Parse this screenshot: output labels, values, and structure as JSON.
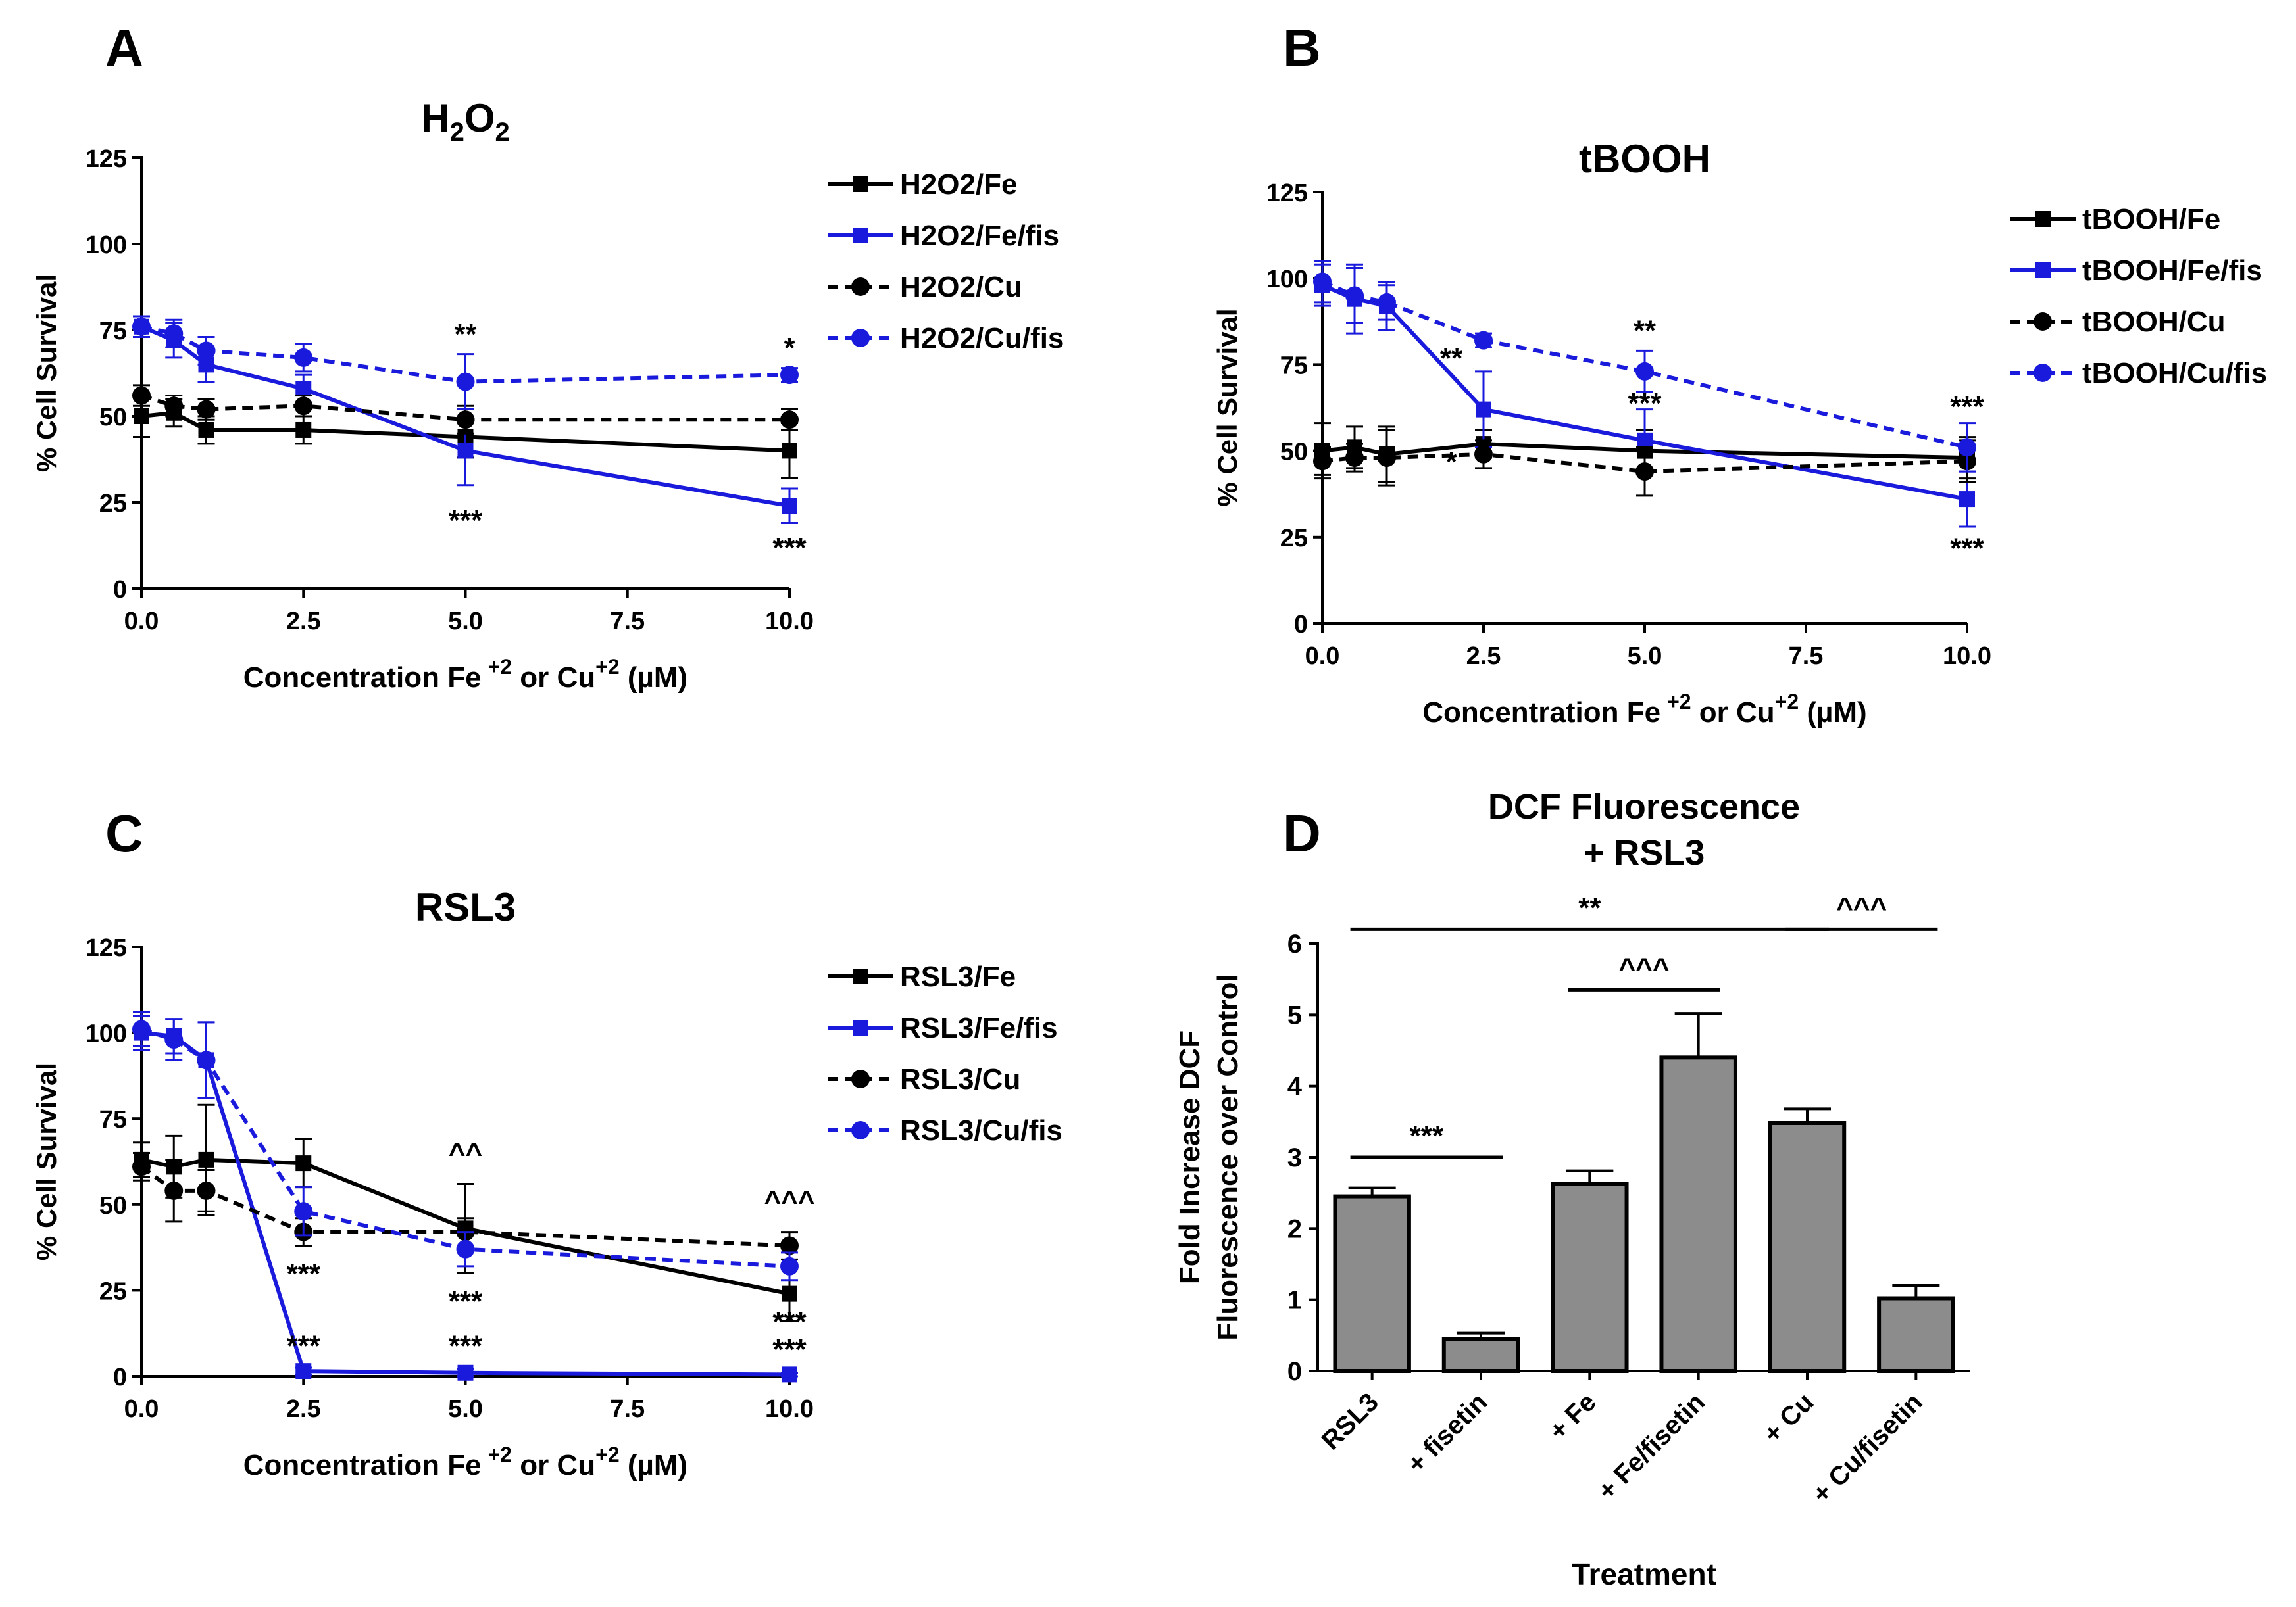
{
  "colors": {
    "black": "#000000",
    "blue": "#1a1adc",
    "bar_fill": "#8c8c8c"
  },
  "chart_data": [
    {
      "type": "line",
      "panel": "A",
      "title": "H2O2",
      "title_base": "H",
      "title_sub1": "2",
      "title_mid": "O",
      "title_sub2": "2",
      "ylabel": "% Cell Survival",
      "xlabel_main": "Concentration Fe",
      "xlabel_sup1": "+2",
      "xlabel_mid": " or Cu",
      "xlabel_sup2": "+2",
      "xlabel_end": " (µM)",
      "xlim": [
        0,
        10
      ],
      "ylim": [
        0,
        125
      ],
      "xticks": [
        0,
        2.5,
        5,
        7.5,
        10
      ],
      "xtick_labels": [
        "0.0",
        "2.5",
        "5.0",
        "7.5",
        "10.0"
      ],
      "yticks": [
        0,
        25,
        50,
        75,
        100,
        125
      ],
      "ytick_labels": [
        "0",
        "25",
        "50",
        "75",
        "100",
        "125"
      ],
      "legend_position": "right",
      "series": [
        {
          "name": "H2O2/Fe",
          "color": "#000000",
          "dash": false,
          "marker": "square",
          "x": [
            0,
            0.5,
            1,
            2.5,
            5,
            10
          ],
          "y": [
            50,
            51,
            46,
            46,
            44,
            40
          ],
          "err": [
            6,
            4,
            4,
            4,
            6,
            8
          ]
        },
        {
          "name": "H2O2/Fe/fis",
          "color": "#1a1adc",
          "dash": false,
          "marker": "square",
          "x": [
            0,
            0.5,
            1,
            2.5,
            5,
            10
          ],
          "y": [
            76,
            72,
            65,
            58,
            40,
            24
          ],
          "err": [
            3,
            5,
            5,
            4,
            10,
            5
          ]
        },
        {
          "name": "H2O2/Cu",
          "color": "#000000",
          "dash": true,
          "marker": "circle",
          "x": [
            0,
            0.5,
            1,
            2.5,
            5,
            10
          ],
          "y": [
            56,
            53,
            52,
            53,
            49,
            49
          ],
          "err": [
            3,
            3,
            3,
            3,
            4,
            3
          ]
        },
        {
          "name": "H2O2/Cu/fis",
          "color": "#1a1adc",
          "dash": true,
          "marker": "circle",
          "x": [
            0,
            0.5,
            1,
            2.5,
            5,
            10
          ],
          "y": [
            76,
            74,
            69,
            67,
            60,
            62
          ],
          "err": [
            3,
            4,
            4,
            4,
            8,
            2
          ]
        }
      ],
      "annotations": [
        {
          "text": "**",
          "x": 5,
          "y": 71
        },
        {
          "text": "***",
          "x": 5,
          "y": 17
        },
        {
          "text": "*",
          "x": 10,
          "y": 67
        },
        {
          "text": "***",
          "x": 10,
          "y": 9
        }
      ]
    },
    {
      "type": "line",
      "panel": "B",
      "title": "tBOOH",
      "ylabel": "% Cell Survival",
      "xlabel_main": "Concentration Fe",
      "xlabel_sup1": "+2",
      "xlabel_mid": " or Cu",
      "xlabel_sup2": "+2",
      "xlabel_end": " (µM)",
      "xlim": [
        0,
        10
      ],
      "ylim": [
        0,
        125
      ],
      "xticks": [
        0,
        2.5,
        5,
        7.5,
        10
      ],
      "xtick_labels": [
        "0.0",
        "2.5",
        "5.0",
        "7.5",
        "10.0"
      ],
      "yticks": [
        0,
        25,
        50,
        75,
        100,
        125
      ],
      "ytick_labels": [
        "0",
        "25",
        "50",
        "75",
        "100",
        "125"
      ],
      "legend_position": "right",
      "series": [
        {
          "name": "tBOOH/Fe",
          "color": "#000000",
          "dash": false,
          "marker": "square",
          "x": [
            0,
            0.5,
            1,
            2.5,
            5,
            10
          ],
          "y": [
            50,
            51,
            49,
            52,
            50,
            48
          ],
          "err": [
            8,
            6,
            8,
            4,
            6,
            6
          ]
        },
        {
          "name": "tBOOH/Fe/fis",
          "color": "#1a1adc",
          "dash": false,
          "marker": "square",
          "x": [
            0,
            0.5,
            1,
            2.5,
            5,
            10
          ],
          "y": [
            98,
            94,
            92,
            62,
            53,
            36
          ],
          "err": [
            6,
            10,
            7,
            11,
            9,
            8
          ]
        },
        {
          "name": "tBOOH/Cu",
          "color": "#000000",
          "dash": true,
          "marker": "circle",
          "x": [
            0,
            0.5,
            1,
            2.5,
            5,
            10
          ],
          "y": [
            47,
            48,
            48,
            49,
            44,
            47
          ],
          "err": [
            4,
            4,
            8,
            4,
            7,
            6
          ]
        },
        {
          "name": "tBOOH/Cu/fis",
          "color": "#1a1adc",
          "dash": true,
          "marker": "circle",
          "x": [
            0,
            0.5,
            1,
            2.5,
            5,
            10
          ],
          "y": [
            99,
            95,
            93,
            82,
            73,
            51
          ],
          "err": [
            6,
            8,
            5,
            2,
            6,
            7
          ]
        }
      ],
      "annotations": [
        {
          "text": "**",
          "x": 2,
          "y": 74
        },
        {
          "text": "*",
          "x": 2,
          "y": 44
        },
        {
          "text": "**",
          "x": 5,
          "y": 82
        },
        {
          "text": "***",
          "x": 5,
          "y": 61
        },
        {
          "text": "***",
          "x": 10,
          "y": 60
        },
        {
          "text": "***",
          "x": 10,
          "y": 19
        }
      ]
    },
    {
      "type": "line",
      "panel": "C",
      "title": "RSL3",
      "ylabel": "% Cell Survival",
      "xlabel_main": "Concentration Fe",
      "xlabel_sup1": "+2",
      "xlabel_mid": " or Cu",
      "xlabel_sup2": "+2",
      "xlabel_end": " (µM)",
      "xlim": [
        0,
        10
      ],
      "ylim": [
        0,
        125
      ],
      "xticks": [
        0,
        2.5,
        5,
        7.5,
        10
      ],
      "xtick_labels": [
        "0.0",
        "2.5",
        "5.0",
        "7.5",
        "10.0"
      ],
      "yticks": [
        0,
        25,
        50,
        75,
        100,
        125
      ],
      "ytick_labels": [
        "0",
        "25",
        "50",
        "75",
        "100",
        "125"
      ],
      "legend_position": "right",
      "series": [
        {
          "name": "RSL3/Fe",
          "color": "#000000",
          "dash": false,
          "marker": "square",
          "x": [
            0,
            0.5,
            1,
            2.5,
            5,
            10
          ],
          "y": [
            63,
            61,
            63,
            62,
            43,
            24
          ],
          "err": [
            5,
            9,
            16,
            7,
            13,
            8
          ]
        },
        {
          "name": "RSL3/Fe/fis",
          "color": "#1a1adc",
          "dash": false,
          "marker": "square",
          "x": [
            0,
            0.5,
            1,
            2.5,
            5,
            10
          ],
          "y": [
            100,
            99,
            92,
            1.5,
            1,
            0.5
          ],
          "err": [
            5,
            5,
            11,
            1,
            1,
            0.5
          ]
        },
        {
          "name": "RSL3/Cu",
          "color": "#000000",
          "dash": true,
          "marker": "circle",
          "x": [
            0,
            0.5,
            1,
            2.5,
            5,
            10
          ],
          "y": [
            61,
            54,
            54,
            42,
            42,
            38
          ],
          "err": [
            4,
            9,
            6,
            4,
            4,
            4
          ]
        },
        {
          "name": "RSL3/Cu/fis",
          "color": "#1a1adc",
          "dash": true,
          "marker": "circle",
          "x": [
            0,
            0.5,
            1,
            2.5,
            5,
            10
          ],
          "y": [
            101,
            98,
            92,
            48,
            37,
            32
          ],
          "err": [
            5,
            6,
            11,
            7,
            5,
            4
          ]
        }
      ],
      "annotations": [
        {
          "text": "***",
          "x": 2.5,
          "y": 27
        },
        {
          "text": "***",
          "x": 2.5,
          "y": 6
        },
        {
          "text": "^^",
          "x": 5,
          "y": 62
        },
        {
          "text": "***",
          "x": 5,
          "y": 19
        },
        {
          "text": "***",
          "x": 5,
          "y": 6
        },
        {
          "text": "^^^",
          "x": 10,
          "y": 48
        },
        {
          "text": "***",
          "x": 10,
          "y": 13
        },
        {
          "text": "***",
          "x": 10,
          "y": 5
        }
      ]
    },
    {
      "type": "bar",
      "panel": "D",
      "title_line1": "DCF Fluorescence",
      "title_line2": "+ RSL3",
      "ylabel_line1": "Fold Increase DCF",
      "ylabel_line2": "Fluorescence over Control",
      "xlabel": "Treatment",
      "categories": [
        "RSL3",
        "+ fisetin",
        "+ Fe",
        "+ Fe/fisetin",
        "+ Cu",
        "+ Cu/fisetin"
      ],
      "values": [
        2.45,
        0.45,
        2.63,
        4.4,
        3.48,
        1.02
      ],
      "errors": [
        0.12,
        0.08,
        0.18,
        0.62,
        0.2,
        0.18
      ],
      "ylim": [
        0,
        6
      ],
      "yticks": [
        0,
        1,
        2,
        3,
        4,
        5,
        6
      ],
      "ytick_labels": [
        "0",
        "1",
        "2",
        "3",
        "4",
        "5",
        "6"
      ],
      "significance": [
        {
          "text": "***",
          "from": 0,
          "to": 1,
          "y": 3.0
        },
        {
          "text": "^^^",
          "from": 2,
          "to": 3,
          "y": 5.35
        },
        {
          "text": "**",
          "from": 0,
          "to": 4,
          "y": 6.2
        },
        {
          "text": "^^^",
          "from": 4,
          "to": 5,
          "y": 6.2
        }
      ]
    }
  ]
}
